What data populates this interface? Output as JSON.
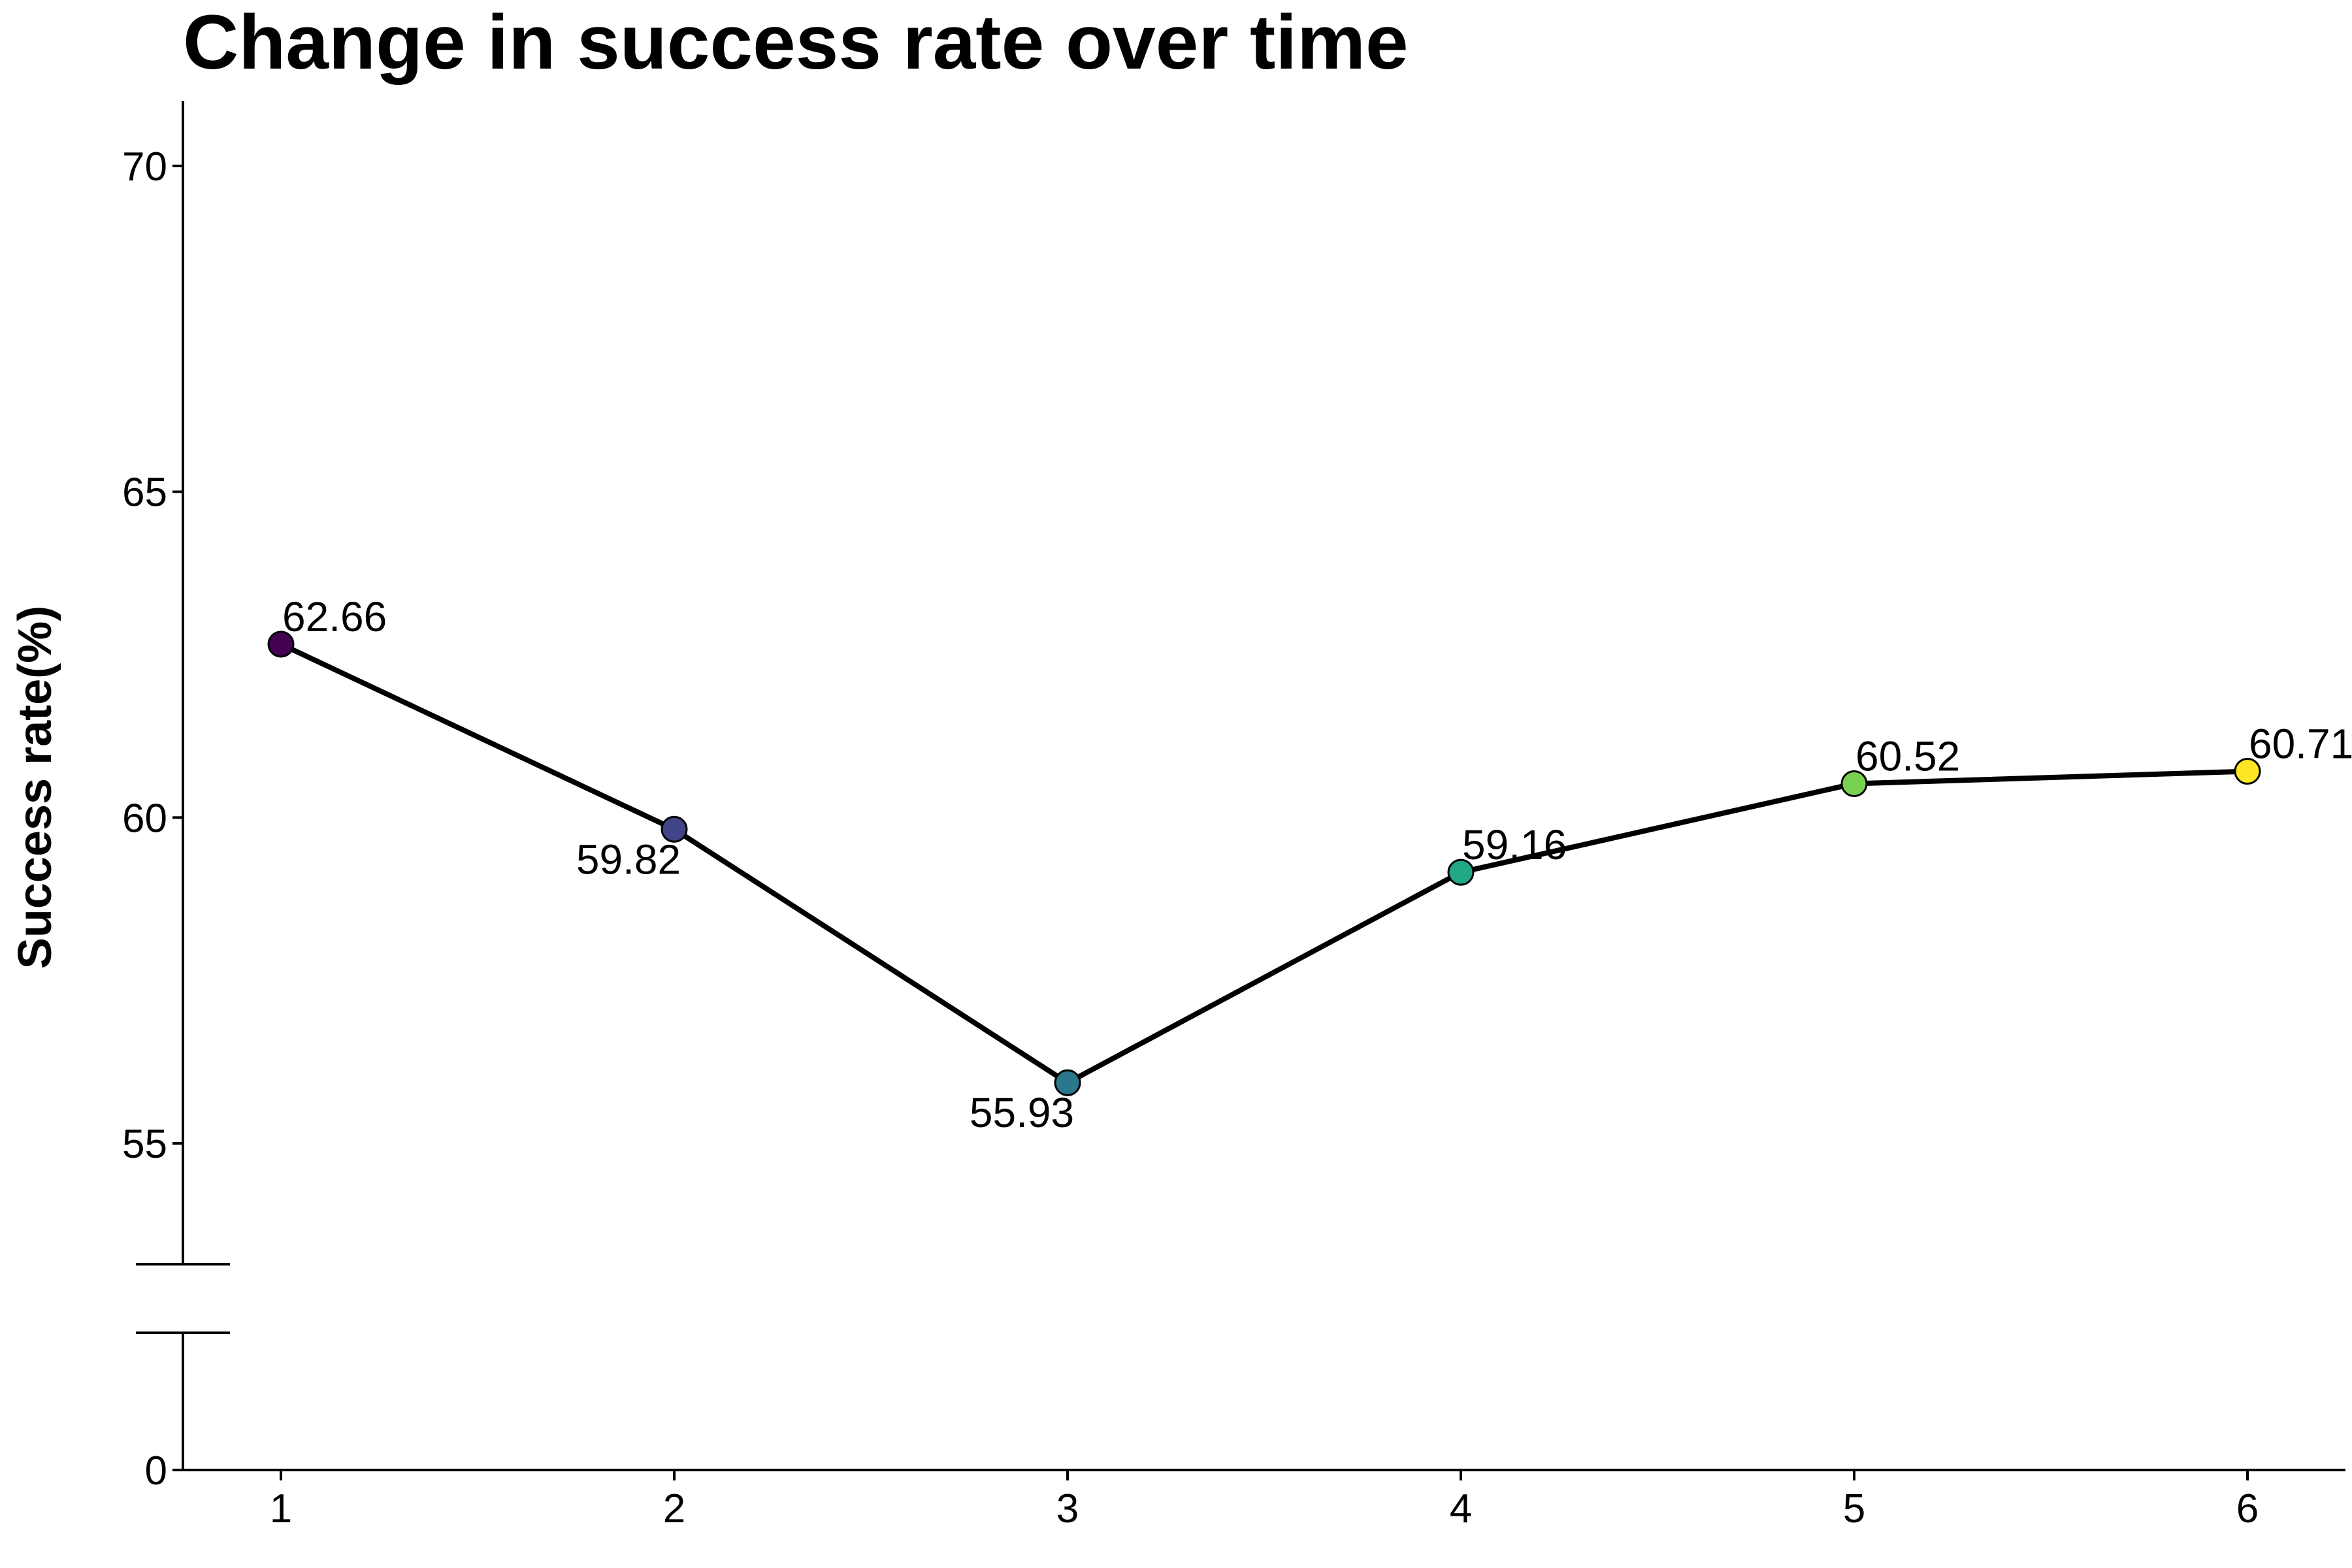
{
  "chart_data": {
    "type": "line",
    "title": "Change in success rate over time",
    "xlabel": "",
    "ylabel": "Success rate(%)",
    "x": [
      1,
      2,
      3,
      4,
      5,
      6
    ],
    "x_tick_labels": [
      "1",
      "2",
      "3",
      "4",
      "5",
      "6"
    ],
    "y_tick_labels": [
      "0",
      "55",
      "60",
      "65",
      "70"
    ],
    "y_ticks": [
      0,
      55,
      60,
      65,
      70
    ],
    "ylim": [
      0,
      71
    ],
    "y_axis_break": true,
    "grid": false,
    "series": [
      {
        "values": [
          62.66,
          59.82,
          55.93,
          59.16,
          60.52,
          60.71
        ],
        "labels": [
          "62.66",
          "59.82",
          "55.93",
          "59.16",
          "60.52",
          "60.71"
        ],
        "point_colors": [
          "#440154",
          "#414487",
          "#2a788e",
          "#22a884",
          "#7ad151",
          "#fde725"
        ],
        "line_color": "#000000"
      }
    ]
  }
}
